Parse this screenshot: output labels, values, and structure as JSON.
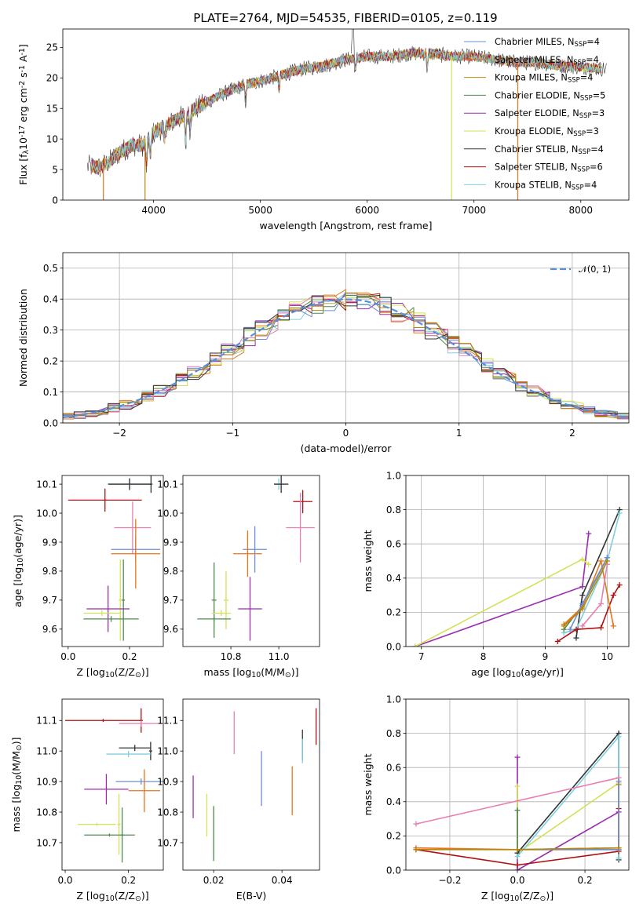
{
  "title": "PLATE=2764, MJD=54535, FIBERID=0105, z=0.119",
  "colors": {
    "chabrier_miles": "#6b8fd6",
    "salpeter_miles": "#e8741a",
    "kroupa_miles": "#b8860b",
    "chabrier_elodie": "#4e8a4e",
    "salpeter_elodie": "#9b2bb0",
    "kroupa_elodie": "#d4e157",
    "chabrier_stelib": "#333333",
    "salpeter_stelib": "#b01010",
    "kroupa_stelib": "#7fd0e0",
    "pink": "#e87fb0",
    "normal": "#5b8fd6"
  },
  "chart_data": [
    {
      "id": "spectrum",
      "type": "line",
      "xlabel": "wavelength [Angstrom, rest frame]",
      "ylabel": "Flux [f$_\\lambda$10$^{-17}$ erg cm$^{-2}$ s$^{-1}$ A$^{-1}$]",
      "ylabel_parts": [
        "Flux [f",
        "λ",
        "10",
        "−17",
        " erg cm",
        "−2",
        " s",
        "−1",
        " A",
        "−1",
        "]"
      ],
      "xlim": [
        3150,
        8450
      ],
      "ylim": [
        0,
        28
      ],
      "xticks": [
        4000,
        5000,
        6000,
        7000,
        8000
      ],
      "yticks": [
        0,
        5,
        10,
        15,
        20,
        25
      ],
      "legend_position": "top-right",
      "legend": [
        {
          "label": "Chabrier MILES, N",
          "sub": "SSP",
          "suffix": "=4",
          "color": "#6b8fd6"
        },
        {
          "label": "Salpeter MILES, N",
          "sub": "SSP",
          "suffix": "=4",
          "color": "#e8741a"
        },
        {
          "label": "Kroupa MILES, N",
          "sub": "SSP",
          "suffix": "=4",
          "color": "#b8860b"
        },
        {
          "label": "Chabrier ELODIE, N",
          "sub": "SSP",
          "suffix": "=5",
          "color": "#4e8a4e"
        },
        {
          "label": "Salpeter ELODIE, N",
          "sub": "SSP",
          "suffix": "=3",
          "color": "#9b2bb0"
        },
        {
          "label": "Kroupa ELODIE, N",
          "sub": "SSP",
          "suffix": "=3",
          "color": "#d4e157"
        },
        {
          "label": "Chabrier STELIB, N",
          "sub": "SSP",
          "suffix": "=4",
          "color": "#333333"
        },
        {
          "label": "Salpeter STELIB, N",
          "sub": "SSP",
          "suffix": "=6",
          "color": "#b01010"
        },
        {
          "label": "Kroupa STELIB, N",
          "sub": "SSP",
          "suffix": "=4",
          "color": "#7fd0e0"
        }
      ],
      "continuum": [
        [
          3400,
          5.5
        ],
        [
          3500,
          5.3
        ],
        [
          3600,
          6.5
        ],
        [
          3700,
          8
        ],
        [
          3800,
          9
        ],
        [
          3900,
          9
        ],
        [
          4000,
          11
        ],
        [
          4200,
          13
        ],
        [
          4400,
          15
        ],
        [
          4600,
          17
        ],
        [
          4800,
          18.5
        ],
        [
          5000,
          19.5
        ],
        [
          5200,
          20.5
        ],
        [
          5400,
          21.5
        ],
        [
          5600,
          22
        ],
        [
          5800,
          23
        ],
        [
          6000,
          23.5
        ],
        [
          6200,
          23.5
        ],
        [
          6400,
          24
        ],
        [
          6600,
          24
        ],
        [
          6800,
          23.5
        ],
        [
          7000,
          23.5
        ],
        [
          7200,
          23
        ],
        [
          7400,
          22.5
        ],
        [
          7600,
          22.5
        ],
        [
          7800,
          22
        ],
        [
          8000,
          21.8
        ],
        [
          8200,
          21.5
        ]
      ],
      "absorption": [
        [
          3934,
          5
        ],
        [
          3969,
          4.5
        ],
        [
          4102,
          3
        ],
        [
          4300,
          6
        ],
        [
          4340,
          3
        ],
        [
          4861,
          3
        ],
        [
          5175,
          3
        ],
        [
          5890,
          2.5
        ],
        [
          6563,
          3
        ]
      ],
      "drops": [
        {
          "x": 3530,
          "color": "#e8741a"
        },
        {
          "x": 3920,
          "color": "#b8860b"
        },
        {
          "x": 6790,
          "color": "#d4e157"
        },
        {
          "x": 7410,
          "color": "#e8741a"
        }
      ]
    },
    {
      "id": "residuals",
      "type": "step-histogram",
      "xlabel": "(data-model)/error",
      "ylabel": "Normed distribution",
      "xlim": [
        -2.5,
        2.5
      ],
      "ylim": [
        0,
        0.55
      ],
      "xticks": [
        -2,
        -1,
        0,
        1,
        2
      ],
      "yticks": [
        0.0,
        0.1,
        0.2,
        0.3,
        0.4,
        0.5
      ],
      "bin_width": 0.1,
      "legend_position": "top-right",
      "legend": [
        {
          "label": "𝒩(0, 1)",
          "style": "dashed",
          "color": "#5b8fd6"
        }
      ]
    },
    {
      "id": "age-vs-Z",
      "type": "errorbar",
      "xlabel": "Z [log$_{10}$(Z/Z$_\\odot$)]",
      "ylabel": "age  [log$_{10}$(age/yr)]",
      "xlim": [
        -0.02,
        0.31
      ],
      "ylim": [
        9.54,
        10.13
      ],
      "xticks": [
        0.0,
        0.2
      ],
      "yticks": [
        9.6,
        9.7,
        9.8,
        9.9,
        10.0,
        10.1
      ],
      "points": [
        {
          "x": 0.2,
          "y": 10.1,
          "xerr": 0.07,
          "yerr": 0.02,
          "color": "#7fd0e0"
        },
        {
          "x": 0.2,
          "y": 10.1,
          "xerr": 0.07,
          "yerr": 0.02,
          "color": "#333333"
        },
        {
          "x": 0.27,
          "y": 10.1,
          "xerr": 0.005,
          "yerr": 0.03,
          "color": "#333333"
        },
        {
          "x": 0.12,
          "y": 10.045,
          "xerr": 0.12,
          "yerr": 0.04,
          "color": "#b01010"
        },
        {
          "x": 0.21,
          "y": 9.95,
          "xerr": 0.06,
          "yerr": 0.09,
          "color": "#e87fb0"
        },
        {
          "x": 0.22,
          "y": 9.875,
          "xerr": 0.08,
          "yerr": 0.04,
          "color": "#6b8fd6"
        },
        {
          "x": 0.22,
          "y": 9.86,
          "xerr": 0.08,
          "yerr": 0.12,
          "color": "#e8741a"
        },
        {
          "x": 0.17,
          "y": 9.7,
          "xerr": 0.005,
          "yerr": 0.14,
          "color": "#d4e157"
        },
        {
          "x": 0.18,
          "y": 9.7,
          "xerr": 0.005,
          "yerr": 0.14,
          "color": "#4e8a4e"
        },
        {
          "x": 0.13,
          "y": 9.67,
          "xerr": 0.07,
          "yerr": 0.08,
          "color": "#9b2bb0"
        },
        {
          "x": 0.11,
          "y": 9.655,
          "xerr": 0.06,
          "yerr": 0.01,
          "color": "#d4e157"
        },
        {
          "x": 0.14,
          "y": 9.635,
          "xerr": 0.09,
          "yerr": 0.01,
          "color": "#4e8a4e"
        }
      ]
    },
    {
      "id": "age-vs-mass",
      "type": "errorbar",
      "xlabel": "mass [log$_{10}$(M/M$_\\odot$)]",
      "ylabel": "",
      "xlim": [
        10.6,
        11.17
      ],
      "ylim": [
        9.54,
        10.13
      ],
      "xticks": [
        10.8,
        11.0
      ],
      "yticks": [
        9.6,
        9.7,
        9.8,
        9.9,
        10.0,
        10.1
      ],
      "points": [
        {
          "x": 11.0,
          "y": 10.1,
          "xerr": 0.02,
          "yerr": 0.02,
          "color": "#7fd0e0"
        },
        {
          "x": 11.01,
          "y": 10.1,
          "xerr": 0.03,
          "yerr": 0.03,
          "color": "#333333"
        },
        {
          "x": 11.1,
          "y": 10.04,
          "xerr": 0.04,
          "yerr": 0.04,
          "color": "#b01010"
        },
        {
          "x": 11.09,
          "y": 9.95,
          "xerr": 0.06,
          "yerr": 0.12,
          "color": "#e87fb0"
        },
        {
          "x": 10.9,
          "y": 9.875,
          "xerr": 0.05,
          "yerr": 0.08,
          "color": "#6b8fd6"
        },
        {
          "x": 10.87,
          "y": 9.86,
          "xerr": 0.06,
          "yerr": 0.08,
          "color": "#e8741a"
        },
        {
          "x": 10.78,
          "y": 9.7,
          "xerr": 0.01,
          "yerr": 0.1,
          "color": "#d4e157"
        },
        {
          "x": 10.73,
          "y": 9.7,
          "xerr": 0.01,
          "yerr": 0.13,
          "color": "#4e8a4e"
        },
        {
          "x": 10.88,
          "y": 9.67,
          "xerr": 0.05,
          "yerr": 0.11,
          "color": "#9b2bb0"
        },
        {
          "x": 10.76,
          "y": 9.655,
          "xerr": 0.04,
          "yerr": 0.01,
          "color": "#d4e157"
        },
        {
          "x": 10.73,
          "y": 9.635,
          "xerr": 0.07,
          "yerr": 0.01,
          "color": "#4e8a4e"
        }
      ]
    },
    {
      "id": "massweight-vs-age",
      "type": "line",
      "xlabel": "age  [log$_{10}$(age/yr)]",
      "ylabel": "mass weight",
      "xlim": [
        6.75,
        10.35
      ],
      "ylim": [
        0,
        1.0
      ],
      "xticks": [
        7,
        8,
        9,
        10
      ],
      "yticks": [
        0.0,
        0.2,
        0.4,
        0.6,
        0.8,
        1.0
      ],
      "series": [
        {
          "color": "#9b2bb0",
          "x": [
            6.9,
            9.6,
            9.7
          ],
          "y": [
            0.0,
            0.35,
            0.66
          ]
        },
        {
          "color": "#d4e157",
          "x": [
            6.9,
            9.6,
            9.7
          ],
          "y": [
            0.0,
            0.51,
            0.48
          ]
        },
        {
          "color": "#333333",
          "x": [
            9.5,
            9.6,
            10.2
          ],
          "y": [
            0.05,
            0.3,
            0.8
          ]
        },
        {
          "color": "#7fd0e0",
          "x": [
            9.3,
            9.5,
            10.0,
            10.2
          ],
          "y": [
            0.08,
            0.1,
            0.5,
            0.78
          ]
        },
        {
          "color": "#4e8a4e",
          "x": [
            9.3,
            9.6,
            10.0
          ],
          "y": [
            0.1,
            0.24,
            0.52
          ]
        },
        {
          "color": "#b01010",
          "x": [
            9.2,
            9.5,
            9.9,
            10.1,
            10.2
          ],
          "y": [
            0.03,
            0.1,
            0.11,
            0.3,
            0.36
          ]
        },
        {
          "color": "#e8741a",
          "x": [
            9.3,
            9.6,
            9.9,
            10.1
          ],
          "y": [
            0.13,
            0.23,
            0.5,
            0.12
          ]
        },
        {
          "color": "#e87fb0",
          "x": [
            9.6,
            9.9,
            10.0
          ],
          "y": [
            0.12,
            0.25,
            0.48
          ]
        },
        {
          "color": "#6b8fd6",
          "x": [
            9.4,
            9.6,
            10.0
          ],
          "y": [
            0.1,
            0.25,
            0.52
          ]
        },
        {
          "color": "#b8860b",
          "x": [
            9.3,
            9.6,
            10.0
          ],
          "y": [
            0.12,
            0.22,
            0.5
          ]
        }
      ]
    },
    {
      "id": "mass-vs-Z",
      "type": "errorbar",
      "xlabel": "Z [log$_{10}$(Z/Z$_\\odot$)]",
      "ylabel": "mass [log$_{10}$(M/M$_\\odot$)]",
      "xlim": [
        -0.01,
        0.31
      ],
      "ylim": [
        10.61,
        11.17
      ],
      "xticks": [
        0.0,
        0.2
      ],
      "yticks": [
        10.7,
        10.8,
        10.9,
        11.0,
        11.1
      ],
      "points": [
        {
          "x": 0.12,
          "y": 11.1,
          "xerr": 0.12,
          "yerr": 0.005,
          "color": "#b01010"
        },
        {
          "x": 0.24,
          "y": 11.1,
          "xerr": 0.005,
          "yerr": 0.04,
          "color": "#b01010"
        },
        {
          "x": 0.24,
          "y": 11.09,
          "xerr": 0.07,
          "yerr": 0.01,
          "color": "#e87fb0"
        },
        {
          "x": 0.22,
          "y": 11.01,
          "xerr": 0.05,
          "yerr": 0.01,
          "color": "#333333"
        },
        {
          "x": 0.27,
          "y": 11.0,
          "xerr": 0.005,
          "yerr": 0.03,
          "color": "#333333"
        },
        {
          "x": 0.2,
          "y": 10.99,
          "xerr": 0.07,
          "yerr": 0.01,
          "color": "#7fd0e0"
        },
        {
          "x": 0.24,
          "y": 10.9,
          "xerr": 0.08,
          "yerr": 0.01,
          "color": "#6b8fd6"
        },
        {
          "x": 0.25,
          "y": 10.87,
          "xerr": 0.05,
          "yerr": 0.07,
          "color": "#e8741a"
        },
        {
          "x": 0.13,
          "y": 10.875,
          "xerr": 0.07,
          "yerr": 0.05,
          "color": "#9b2bb0"
        },
        {
          "x": 0.1,
          "y": 10.76,
          "xerr": 0.06,
          "yerr": 0.005,
          "color": "#d4e157"
        },
        {
          "x": 0.17,
          "y": 10.76,
          "xerr": 0.005,
          "yerr": 0.1,
          "color": "#d4e157"
        },
        {
          "x": 0.14,
          "y": 10.725,
          "xerr": 0.08,
          "yerr": 0.005,
          "color": "#4e8a4e"
        },
        {
          "x": 0.18,
          "y": 10.725,
          "xerr": 0.005,
          "yerr": 0.09,
          "color": "#4e8a4e"
        }
      ]
    },
    {
      "id": "mass-vs-EBV",
      "type": "errorbar",
      "xlabel": "E(B-V)",
      "ylabel": "",
      "xlim": [
        0.011,
        0.051
      ],
      "ylim": [
        10.61,
        11.17
      ],
      "xticks": [
        0.02,
        0.04
      ],
      "yticks": [
        10.7,
        10.8,
        10.9,
        11.0,
        11.1
      ],
      "points": [
        {
          "x": 0.05,
          "y": 11.08,
          "xerr": 0.0,
          "yerr": 0.06,
          "color": "#b01010"
        },
        {
          "x": 0.026,
          "y": 11.06,
          "xerr": 0.0,
          "yerr": 0.07,
          "color": "#e87fb0"
        },
        {
          "x": 0.046,
          "y": 11.02,
          "xerr": 0.0,
          "yerr": 0.05,
          "color": "#333333"
        },
        {
          "x": 0.046,
          "y": 11.0,
          "xerr": 0.0,
          "yerr": 0.04,
          "color": "#7fd0e0"
        },
        {
          "x": 0.034,
          "y": 10.91,
          "xerr": 0.0,
          "yerr": 0.09,
          "color": "#6b8fd6"
        },
        {
          "x": 0.043,
          "y": 10.87,
          "xerr": 0.0,
          "yerr": 0.08,
          "color": "#e8741a"
        },
        {
          "x": 0.014,
          "y": 10.85,
          "xerr": 0.0,
          "yerr": 0.07,
          "color": "#9b2bb0"
        },
        {
          "x": 0.018,
          "y": 10.79,
          "xerr": 0.0,
          "yerr": 0.07,
          "color": "#d4e157"
        },
        {
          "x": 0.02,
          "y": 10.73,
          "xerr": 0.0,
          "yerr": 0.09,
          "color": "#4e8a4e"
        }
      ]
    },
    {
      "id": "massweight-vs-Z",
      "type": "line",
      "xlabel": "Z [log$_{10}$(Z/Z$_\\odot$)]",
      "ylabel": "mass weight",
      "xlim": [
        -0.33,
        0.33
      ],
      "ylim": [
        0,
        1.0
      ],
      "xticks": [
        -0.2,
        0.0,
        0.2
      ],
      "yticks": [
        0.0,
        0.2,
        0.4,
        0.6,
        0.8,
        1.0
      ],
      "series": [
        {
          "color": "#9b2bb0",
          "x": [
            0.0,
            0.0,
            0.3
          ],
          "y": [
            0.66,
            0.0,
            0.34
          ]
        },
        {
          "color": "#d4e157",
          "x": [
            0.0,
            0.0,
            0.3
          ],
          "y": [
            0.49,
            0.1,
            0.51
          ]
        },
        {
          "color": "#333333",
          "x": [
            0.0,
            0.3,
            0.3
          ],
          "y": [
            0.1,
            0.8,
            0.06
          ]
        },
        {
          "color": "#7fd0e0",
          "x": [
            0.0,
            0.3,
            0.3
          ],
          "y": [
            0.08,
            0.78,
            0.07
          ]
        },
        {
          "color": "#e87fb0",
          "x": [
            -0.3,
            0.3
          ],
          "y": [
            0.27,
            0.54
          ]
        },
        {
          "color": "#b01010",
          "x": [
            -0.3,
            0.0,
            0.3,
            0.3
          ],
          "y": [
            0.12,
            0.03,
            0.11,
            0.36
          ]
        },
        {
          "color": "#e8741a",
          "x": [
            -0.3,
            0.0,
            0.3,
            0.3
          ],
          "y": [
            0.13,
            0.12,
            0.12,
            0.5
          ]
        },
        {
          "color": "#4e8a4e",
          "x": [
            0.0,
            0.0,
            0.3
          ],
          "y": [
            0.35,
            0.12,
            0.13
          ]
        },
        {
          "color": "#6b8fd6",
          "x": [
            0.0,
            0.3,
            0.3
          ],
          "y": [
            0.12,
            0.12,
            0.52
          ]
        },
        {
          "color": "#b8860b",
          "x": [
            -0.3,
            0.0,
            0.3
          ],
          "y": [
            0.12,
            0.12,
            0.13
          ]
        }
      ]
    }
  ]
}
